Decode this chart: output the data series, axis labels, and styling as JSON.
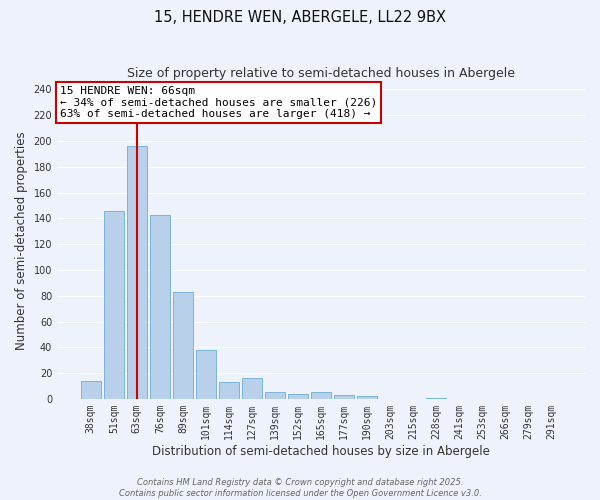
{
  "title": "15, HENDRE WEN, ABERGELE, LL22 9BX",
  "subtitle": "Size of property relative to semi-detached houses in Abergele",
  "xlabel": "Distribution of semi-detached houses by size in Abergele",
  "ylabel": "Number of semi-detached properties",
  "bar_labels": [
    "38sqm",
    "51sqm",
    "63sqm",
    "76sqm",
    "89sqm",
    "101sqm",
    "114sqm",
    "127sqm",
    "139sqm",
    "152sqm",
    "165sqm",
    "177sqm",
    "190sqm",
    "203sqm",
    "215sqm",
    "228sqm",
    "241sqm",
    "253sqm",
    "266sqm",
    "279sqm",
    "291sqm"
  ],
  "bar_values": [
    14,
    146,
    196,
    143,
    83,
    38,
    13,
    16,
    5,
    4,
    5,
    3,
    2,
    0,
    0,
    1,
    0,
    0,
    0,
    0,
    0
  ],
  "bar_color": "#b8d0ea",
  "bar_edge_color": "#6aaed6",
  "background_color": "#eef2fb",
  "grid_color": "#ffffff",
  "vline_x": 2.0,
  "vline_color": "#cc0000",
  "annotation_title": "15 HENDRE WEN: 66sqm",
  "annotation_line2": "← 34% of semi-detached houses are smaller (226)",
  "annotation_line3": "63% of semi-detached houses are larger (418) →",
  "annotation_box_color": "#ffffff",
  "annotation_box_edge": "#cc0000",
  "ylim": [
    0,
    245
  ],
  "yticks": [
    0,
    20,
    40,
    60,
    80,
    100,
    120,
    140,
    160,
    180,
    200,
    220,
    240
  ],
  "footer_line1": "Contains HM Land Registry data © Crown copyright and database right 2025.",
  "footer_line2": "Contains public sector information licensed under the Open Government Licence v3.0.",
  "title_fontsize": 10.5,
  "subtitle_fontsize": 9,
  "xlabel_fontsize": 8.5,
  "ylabel_fontsize": 8.5,
  "tick_fontsize": 7,
  "annotation_fontsize": 8,
  "footer_fontsize": 6
}
